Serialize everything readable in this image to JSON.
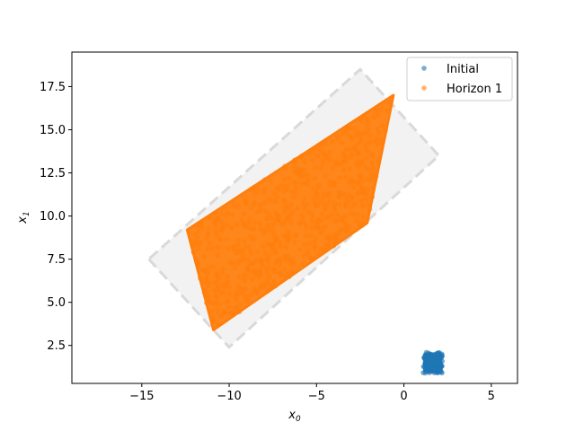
{
  "chart_data": {
    "type": "scatter",
    "xlabel_main": "x",
    "xlabel_sub": "0",
    "ylabel_main": "x",
    "ylabel_sub": "1",
    "xlim": [
      -19,
      6.5
    ],
    "ylim": [
      0.3,
      19.5
    ],
    "xticks": [
      -15,
      -10,
      -5,
      0,
      5
    ],
    "xtick_labels": [
      "−15",
      "−10",
      "−5",
      "0",
      "5"
    ],
    "yticks": [
      2.5,
      5.0,
      7.5,
      10.0,
      12.5,
      15.0,
      17.5
    ],
    "ytick_labels": [
      "2.5",
      "5.0",
      "7.5",
      "10.0",
      "12.5",
      "15.0",
      "17.5"
    ],
    "legend_position": "upper right",
    "legend": [
      {
        "label": "Initial",
        "color": "#1f77b4"
      },
      {
        "label": "Horizon 1",
        "color": "#ff7f0e"
      }
    ],
    "bounding_region": {
      "style": "dashed outline with light gray fill",
      "vertices": [
        [
          -14.6,
          7.5
        ],
        [
          -10.0,
          2.4
        ],
        [
          2.0,
          13.5
        ],
        [
          -2.5,
          18.5
        ]
      ]
    },
    "series": [
      {
        "name": "Initial",
        "color": "#1f77b4",
        "region": "square cluster",
        "x_range": [
          1.1,
          2.2
        ],
        "y_range": [
          0.9,
          2.1
        ]
      },
      {
        "name": "Horizon 1",
        "color": "#ff7f0e",
        "region": "filled polygon cluster",
        "vertices": [
          [
            -12.4,
            9.2
          ],
          [
            -10.9,
            3.4
          ],
          [
            -2.1,
            9.6
          ],
          [
            -0.6,
            17.0
          ]
        ]
      }
    ]
  }
}
